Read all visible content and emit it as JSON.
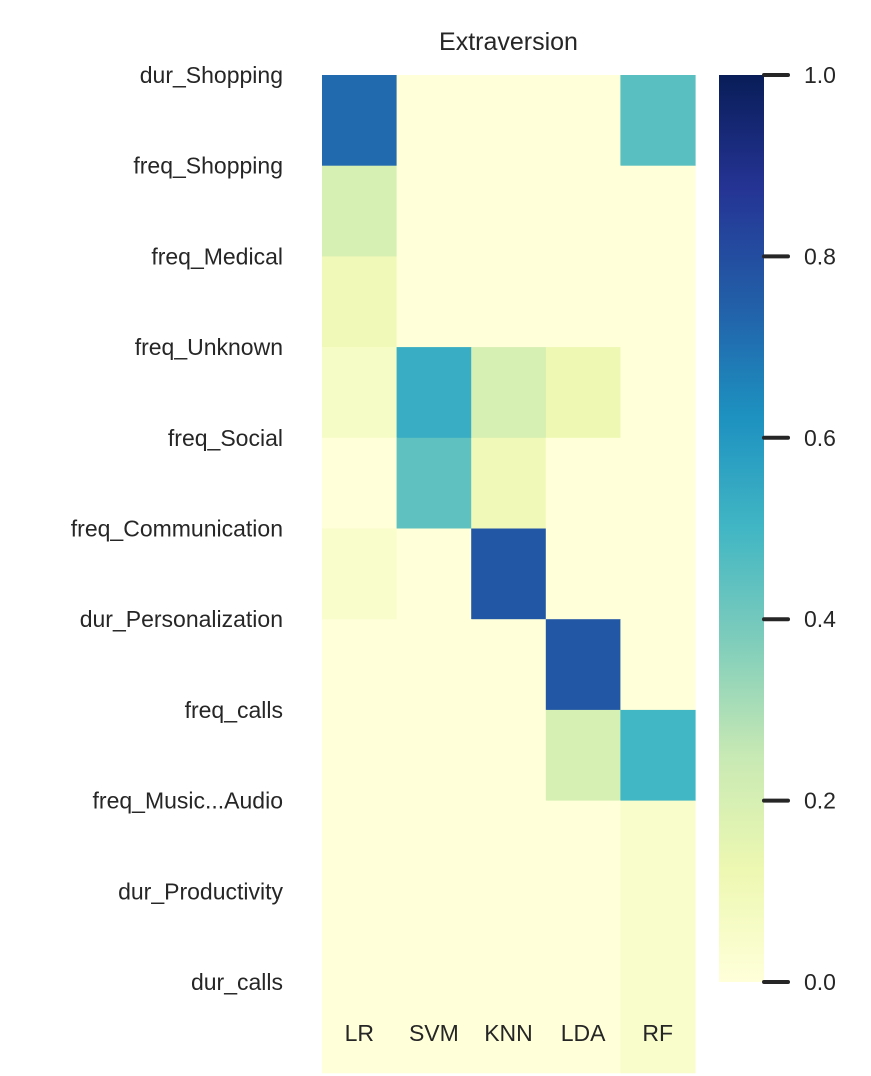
{
  "chart_data": {
    "type": "heatmap",
    "title": "Extraversion",
    "xlabel": "",
    "ylabel": "",
    "x_categories": [
      "LR",
      "SVM",
      "KNN",
      "LDA",
      "RF"
    ],
    "y_categories": [
      "dur_Shopping",
      "freq_Shopping",
      "freq_Medical",
      "freq_Unknown",
      "freq_Social",
      "freq_Communication",
      "dur_Personalization",
      "freq_calls",
      "freq_Music...Audio",
      "dur_Productivity",
      "dur_calls"
    ],
    "values": [
      [
        0.72,
        0.0,
        0.0,
        0.0,
        0.45
      ],
      [
        0.2,
        0.0,
        0.0,
        0.0,
        0.0
      ],
      [
        0.1,
        0.0,
        0.0,
        0.0,
        0.0
      ],
      [
        0.06,
        0.53,
        0.2,
        0.12,
        0.0
      ],
      [
        0.0,
        0.44,
        0.1,
        0.0,
        0.0
      ],
      [
        0.04,
        0.0,
        0.77,
        0.0,
        0.0
      ],
      [
        0.0,
        0.0,
        0.0,
        0.77,
        0.0
      ],
      [
        0.0,
        0.0,
        0.0,
        0.2,
        0.5
      ],
      [
        0.0,
        0.0,
        0.0,
        0.0,
        0.04
      ],
      [
        0.0,
        0.0,
        0.0,
        0.0,
        0.04
      ],
      [
        0.0,
        0.0,
        0.0,
        0.0,
        0.04
      ]
    ],
    "colorbar": {
      "range": [
        0.0,
        1.0
      ],
      "ticks": [
        0.0,
        0.2,
        0.4,
        0.6,
        0.8,
        1.0
      ],
      "tick_labels": [
        "0.0",
        "0.2",
        "0.4",
        "0.6",
        "0.8",
        "1.0"
      ],
      "colormap": "YlGnBu"
    },
    "grid": false,
    "legend": "colorbar-right"
  }
}
